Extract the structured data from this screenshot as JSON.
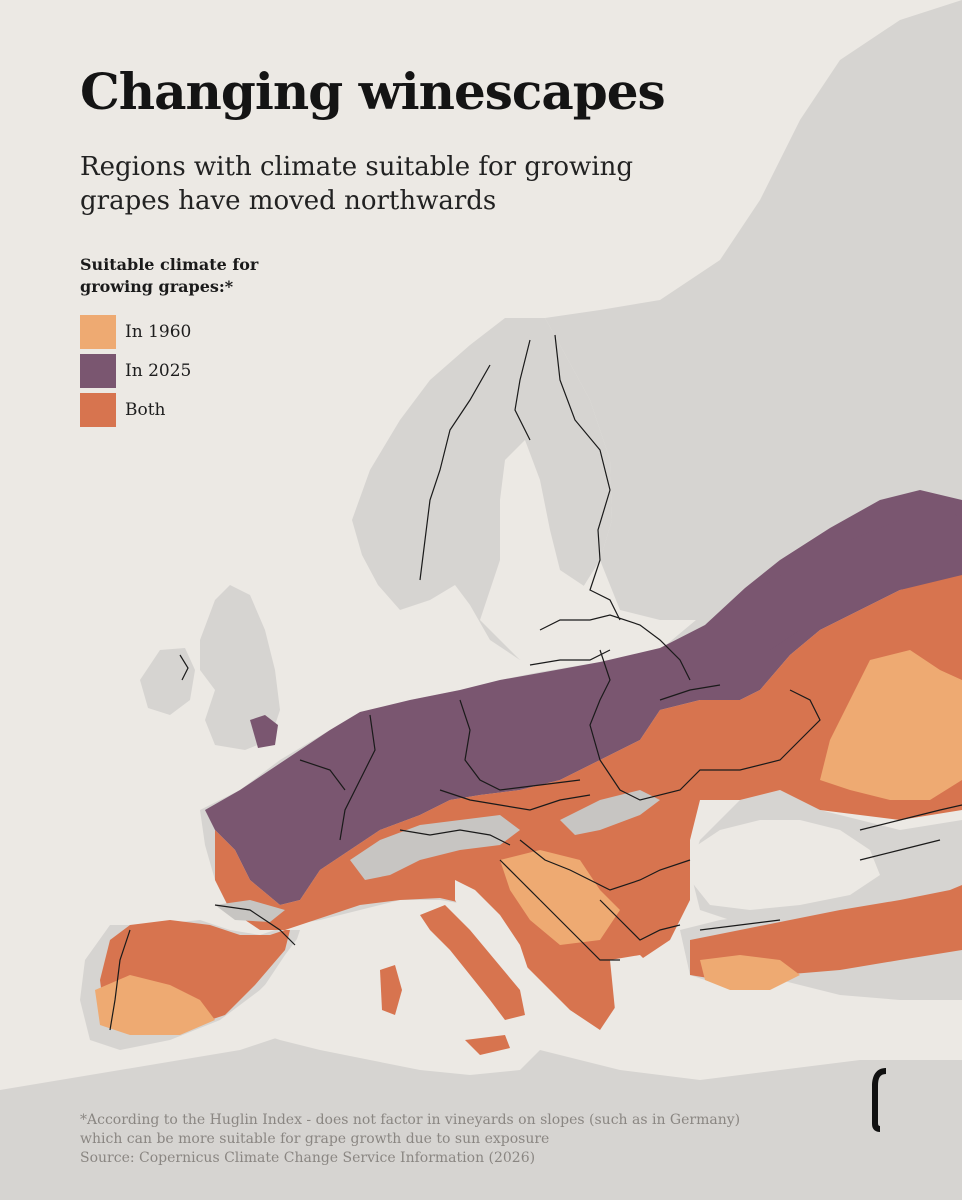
{
  "header": {
    "title": "Changing winescapes",
    "subtitle": "Regions with climate suitable for growing grapes have moved northwards"
  },
  "legend": {
    "title": "Suitable climate for\ngrowing grapes:*",
    "items": [
      {
        "label": "In 1960",
        "color": "#eeaa72"
      },
      {
        "label": "In 2025",
        "color": "#7a5670"
      },
      {
        "label": "Both",
        "color": "#d7744f"
      }
    ]
  },
  "footnote": {
    "note": "*According to the Huglin Index - does not factor in vineyards on slopes (such as in Germany) which can be more suitable for grape growth due to sun exposure",
    "source": "Source: Copernicus Climate Change Service Information (2026)"
  },
  "colors": {
    "sea": "#ece9e4",
    "land": "#d6d4d1",
    "mountain": "#c7c5c2",
    "border": "#1a1a1a",
    "text": "#1a1a1a",
    "muted": "#8a8682"
  },
  "icons": {
    "logo": "publisher-logo-icon"
  }
}
